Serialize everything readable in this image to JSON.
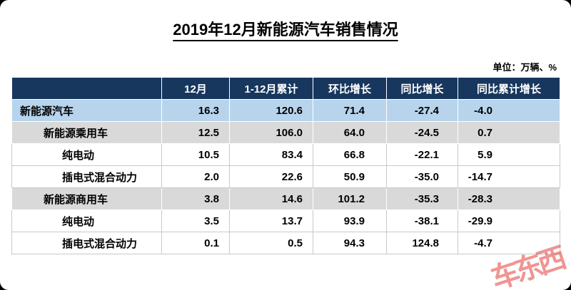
{
  "chart_data": {
    "type": "table",
    "title": "2019年12月新能源汽车销售情况",
    "unit_label": "单位：万辆、%",
    "columns": [
      "12月",
      "1-12月累计",
      "环比增长",
      "同比增长",
      "同比累计增长"
    ],
    "rows": [
      {
        "category": "新能源汽车",
        "indent": 0,
        "band": "highlight",
        "values": [
          16.3,
          120.6,
          71.4,
          -27.4,
          -4.0
        ]
      },
      {
        "category": "新能源乘用车",
        "indent": 1,
        "band": "gray",
        "values": [
          12.5,
          106.0,
          64.0,
          -24.5,
          0.7
        ]
      },
      {
        "category": "纯电动",
        "indent": 2,
        "band": "white",
        "values": [
          10.5,
          83.4,
          66.8,
          -22.1,
          5.9
        ]
      },
      {
        "category": "插电式混合动力",
        "indent": 2,
        "band": "white",
        "values": [
          2.0,
          22.6,
          50.9,
          -35.0,
          -14.7
        ]
      },
      {
        "category": "新能源商用车",
        "indent": 1,
        "band": "gray",
        "values": [
          3.8,
          14.6,
          101.2,
          -35.3,
          -28.3
        ]
      },
      {
        "category": "纯电动",
        "indent": 2,
        "band": "white",
        "values": [
          3.5,
          13.7,
          93.9,
          -38.1,
          -29.9
        ]
      },
      {
        "category": "插电式混合动力",
        "indent": 2,
        "band": "white",
        "values": [
          0.1,
          0.5,
          94.3,
          124.8,
          -4.7
        ]
      }
    ],
    "layout": {
      "header_position": "top",
      "highlight_row": "新能源汽车",
      "value_decimals": 1
    }
  },
  "watermark": {
    "text": "车东西"
  },
  "colors": {
    "header_bg": "#17375E",
    "highlight_row_bg": "#B7D4EC",
    "gray_row_bg": "#D9D9D9",
    "watermark_red": "#E2403C"
  }
}
